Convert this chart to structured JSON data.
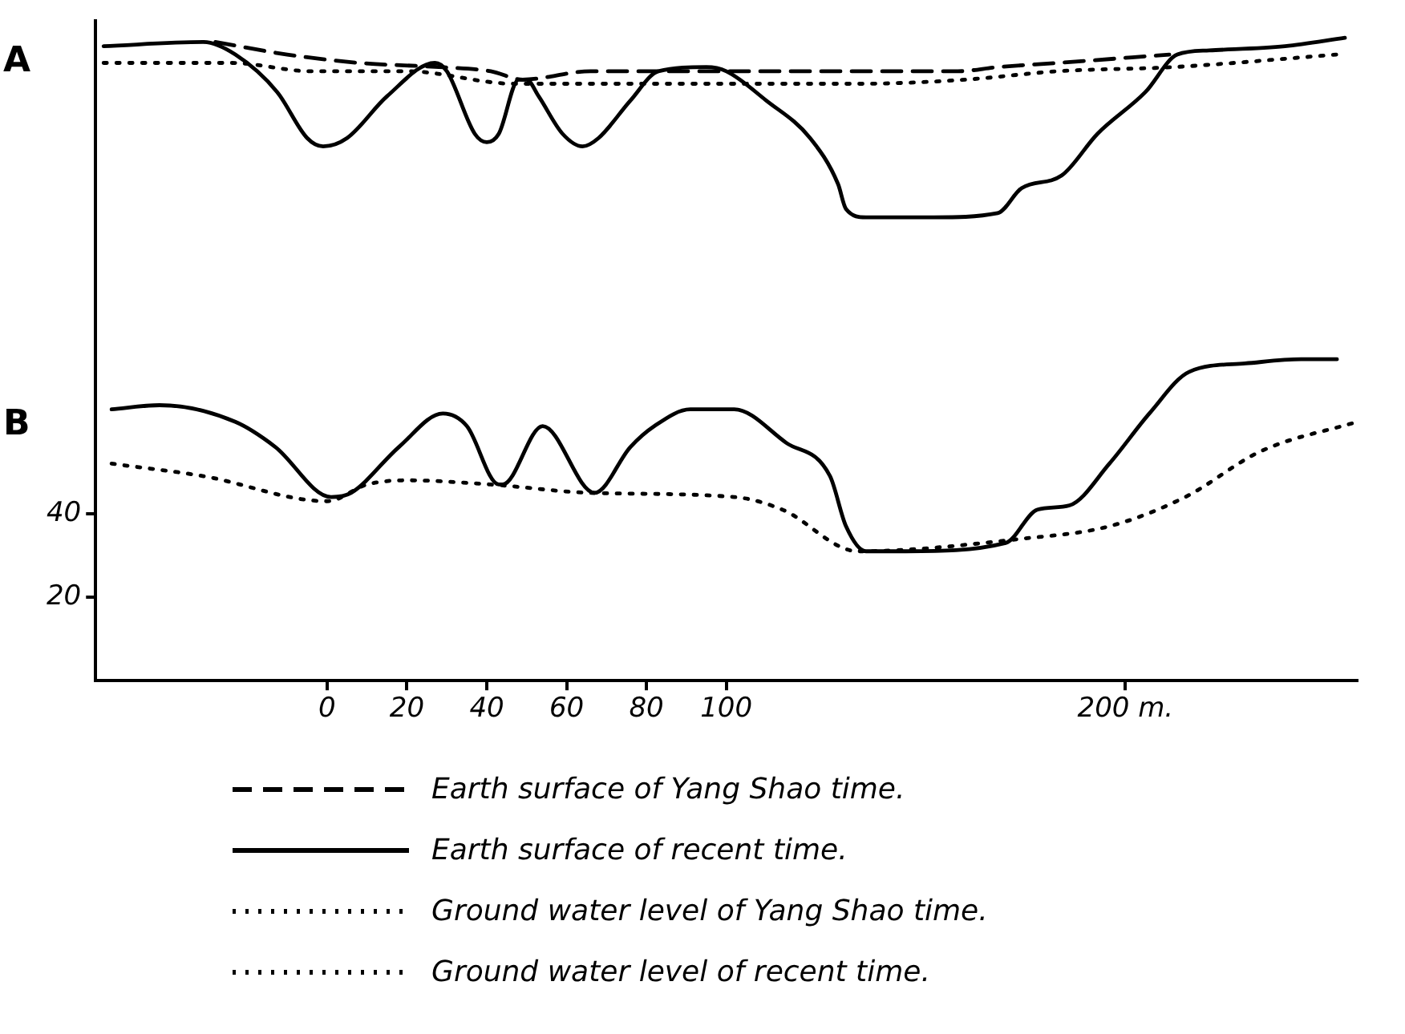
{
  "chart_data": {
    "type": "line",
    "annotations": [
      "A",
      "B"
    ],
    "xlim": [
      -58,
      258
    ],
    "ylim": [
      0,
      158
    ],
    "xticks": [
      0,
      20,
      40,
      60,
      80,
      100,
      {
        "value": 200,
        "label": "200 m."
      }
    ],
    "yticks": [
      20,
      40
    ],
    "grid": false,
    "legend": "bottom",
    "marker": "none",
    "series": [
      {
        "name": "Earth surface of Yang Shao time.",
        "color": "#000000",
        "line_style": "dashed",
        "x": [
          -28,
          -10,
          8,
          28,
          41,
          49,
          66,
          83,
          101,
          158,
          168,
          183,
          211
        ],
        "values": [
          153,
          150,
          148,
          147,
          146,
          144,
          146,
          146,
          146,
          146,
          147,
          148,
          150
        ]
      },
      {
        "name": "Earth surface of recent time.",
        "color": "#000000",
        "line_style": "solid",
        "x": [
          -56,
          -31,
          -23,
          -12.5,
          -5,
          -1,
          5,
          15,
          27,
          30,
          37,
          40,
          43,
          48,
          50,
          53,
          59,
          64,
          68,
          76,
          83,
          95,
          100,
          110,
          121,
          128,
          130,
          135,
          152,
          168,
          174,
          184,
          193,
          205,
          213,
          221,
          240,
          255
        ],
        "values": [
          152,
          153,
          150,
          141,
          130,
          128,
          130,
          140,
          148,
          146,
          131,
          129,
          131,
          144,
          144,
          140,
          131,
          128,
          130,
          139,
          146,
          147,
          146,
          139,
          130,
          119,
          113,
          111,
          111,
          112,
          118,
          121,
          131,
          141,
          150,
          151,
          152,
          154
        ]
      },
      {
        "name": "Ground water level of Yang Shao time.",
        "color": "#000000",
        "line_style": "dotted",
        "x": [
          -56,
          -24,
          -4,
          20,
          47,
          66,
          102,
          133,
          160,
          183,
          212,
          253
        ],
        "values": [
          148,
          148,
          146,
          146,
          143,
          143,
          143,
          143,
          144,
          146,
          147,
          150
        ]
      },
      {
        "name": "Ground water level of recent time.",
        "color": "#000000",
        "line_style": "dotted",
        "x": [
          -54,
          -31,
          0,
          10,
          20,
          41,
          66,
          102,
          114,
          133,
          174,
          196,
          215,
          234,
          258
        ],
        "values": [
          52,
          49,
          43,
          47,
          48,
          47,
          45,
          44,
          41,
          31,
          34,
          37,
          44,
          55,
          62
        ]
      },
      {
        "color": "#000000",
        "line_style": "solid",
        "x": [
          -54,
          -42,
          -23,
          -13,
          1,
          6,
          18,
          29,
          35,
          43,
          44,
          54,
          67,
          76,
          82,
          91,
          102,
          115,
          126,
          130,
          135,
          145,
          170,
          178,
          186,
          196,
          206,
          216,
          230,
          244,
          253
        ],
        "values": [
          65,
          66,
          62,
          56,
          44,
          45,
          56,
          64,
          61,
          47,
          47,
          61,
          45,
          56,
          61,
          65,
          65,
          57,
          49,
          37,
          31,
          31,
          33,
          41,
          42,
          52,
          64,
          74,
          76,
          77,
          77
        ]
      }
    ]
  }
}
